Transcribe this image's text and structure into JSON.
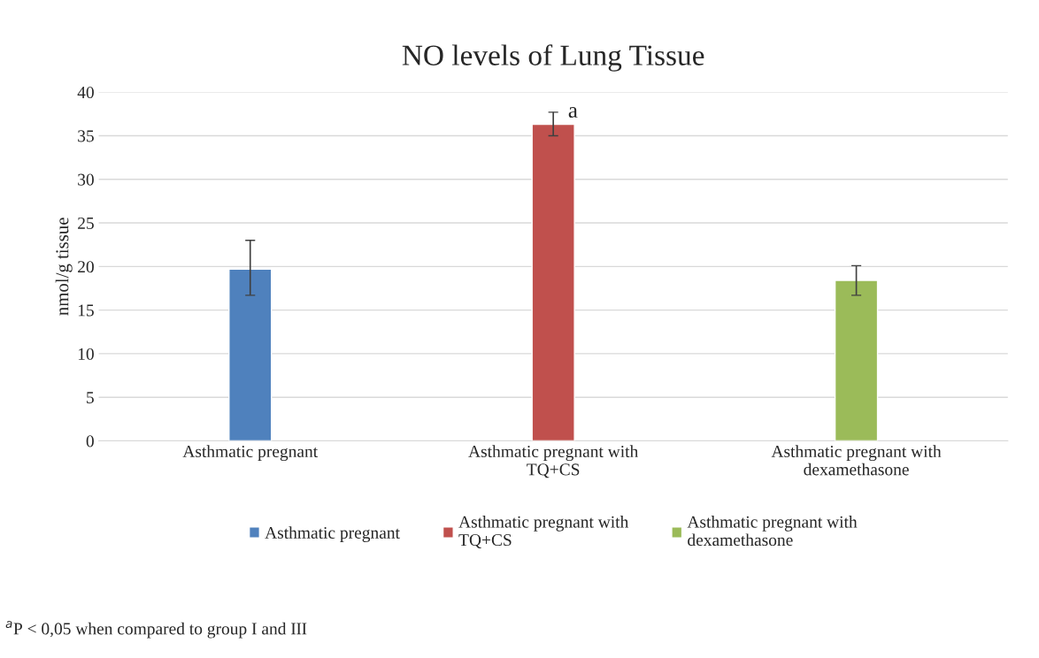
{
  "chart_data": {
    "type": "bar",
    "title": "NO levels of Lung Tissue",
    "ylabel": "nmol/g tissue",
    "categories": [
      "Asthmatic pregnant",
      "Asthmatic pregnant with\nTQ+CS",
      "Asthmatic pregnant with\ndexamethasone"
    ],
    "series": [
      {
        "name": "Asthmatic pregnant",
        "color": "#4f81bd",
        "values": [
          19.7,
          null,
          null
        ],
        "errors": [
          [
            16.7,
            23.0
          ],
          null,
          null
        ]
      },
      {
        "name": "Asthmatic pregnant with\nTQ+CS",
        "color": "#c0504d",
        "values": [
          null,
          36.3,
          null
        ],
        "errors": [
          null,
          [
            35.0,
            37.7
          ],
          null
        ]
      },
      {
        "name": "Asthmatic pregnant with\ndexamethasone",
        "color": "#9bbb59",
        "values": [
          null,
          null,
          18.4
        ],
        "errors": [
          null,
          null,
          [
            16.7,
            20.1
          ]
        ]
      }
    ],
    "ylim": [
      0,
      40
    ],
    "yticks": [
      0,
      5,
      10,
      15,
      20,
      25,
      30,
      35,
      40
    ],
    "grid": "y",
    "legend": "bottom",
    "annotations": [
      {
        "text": "a",
        "x": "Asthmatic pregnant with\nTQ+CS",
        "y": 37.7
      },
      "$^{a}$P < 0,05 when compared to group I and III"
    ]
  }
}
